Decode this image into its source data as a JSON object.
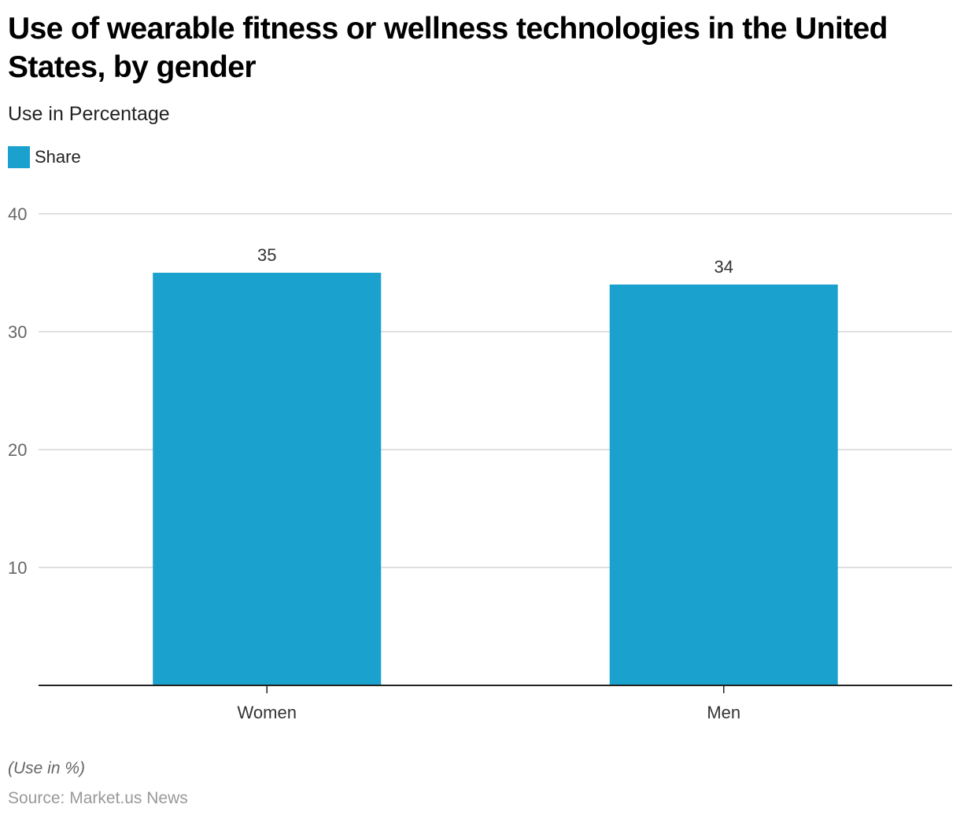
{
  "header": {
    "title": "Use of wearable fitness or wellness technologies in the United States, by gender",
    "subtitle": "Use in Percentage"
  },
  "legend": {
    "items": [
      {
        "label": "Share",
        "color": "#1aa1ce"
      }
    ]
  },
  "footer": {
    "note": "(Use in %)",
    "source": "Source: Market.us News"
  },
  "chart_data": {
    "type": "bar",
    "title": "Use of wearable fitness or wellness technologies in the United States, by gender",
    "subtitle": "Use in Percentage",
    "categories": [
      "Women",
      "Men"
    ],
    "series": [
      {
        "name": "Share",
        "values": [
          35,
          34
        ],
        "color": "#1aa1ce"
      }
    ],
    "data_labels": [
      "35",
      "34"
    ],
    "xlabel": "",
    "ylabel": "",
    "ylim": [
      0,
      40
    ],
    "yticks": [
      10,
      20,
      30,
      40
    ],
    "ytick_labels": [
      "10",
      "20",
      "30",
      "40"
    ],
    "grid": true,
    "legend_position": "top-left",
    "note": "(Use in %)",
    "source": "Source: Market.us News"
  }
}
